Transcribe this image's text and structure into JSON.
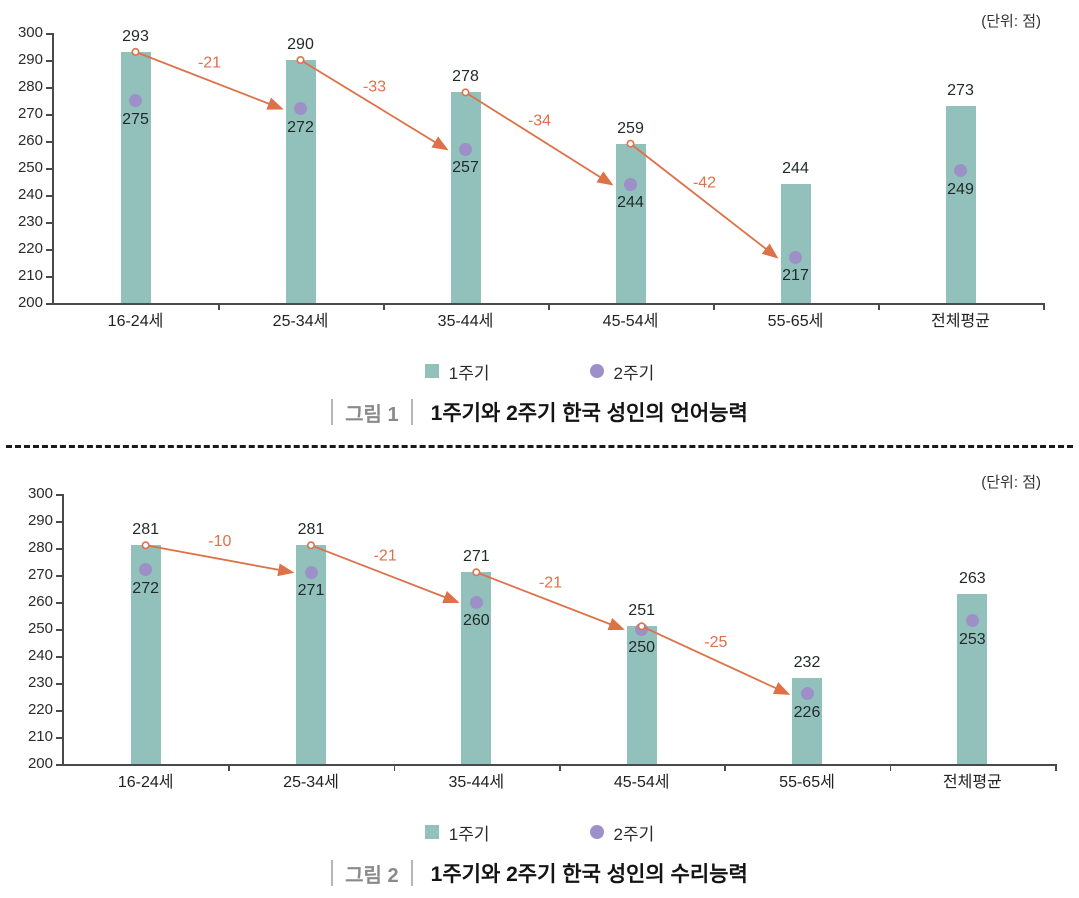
{
  "colors": {
    "bar": "#92c1bc",
    "dot": "#9d90c8",
    "arrow": "#dd7148",
    "axis": "#4a4a4a",
    "caption_label": "#8a8a8a"
  },
  "chart_data": [
    {
      "type": "bar",
      "title": "그림 1 | 1주기와 2주기 한국 성인의 언어능력",
      "caption_label": "그림 1",
      "caption_text": "1주기와 2주기 한국 성인의 언어능력",
      "unit_label": "(단위: 점)",
      "categories": [
        "16-24세",
        "25-34세",
        "35-44세",
        "45-54세",
        "55-65세",
        "전체평균"
      ],
      "series": [
        {
          "name": "1주기",
          "style": "bar",
          "values": [
            293,
            290,
            278,
            259,
            244,
            273
          ]
        },
        {
          "name": "2주기",
          "style": "point",
          "values": [
            275,
            272,
            257,
            244,
            217,
            249
          ]
        }
      ],
      "arrows": [
        {
          "label": "-21",
          "from": 0,
          "to": 1
        },
        {
          "label": "-33",
          "from": 1,
          "to": 2
        },
        {
          "label": "-34",
          "from": 2,
          "to": 3
        },
        {
          "label": "-42",
          "from": 3,
          "to": 4
        }
      ],
      "xlabel": "",
      "ylabel": "",
      "ylim": [
        200,
        300
      ],
      "yticks": [
        200,
        210,
        220,
        230,
        240,
        250,
        260,
        270,
        280,
        290,
        300
      ],
      "grid": false,
      "legend_position": "bottom"
    },
    {
      "type": "bar",
      "title": "그림 2 | 1주기와 2주기 한국 성인의 수리능력",
      "caption_label": "그림 2",
      "caption_text": "1주기와 2주기 한국 성인의 수리능력",
      "unit_label": "(단위: 점)",
      "categories": [
        "16-24세",
        "25-34세",
        "35-44세",
        "45-54세",
        "55-65세",
        "전체평균"
      ],
      "series": [
        {
          "name": "1주기",
          "style": "bar",
          "values": [
            281,
            281,
            271,
            251,
            232,
            263
          ]
        },
        {
          "name": "2주기",
          "style": "point",
          "values": [
            272,
            271,
            260,
            250,
            226,
            253
          ]
        }
      ],
      "arrows": [
        {
          "label": "-10",
          "from": 0,
          "to": 1
        },
        {
          "label": "-21",
          "from": 1,
          "to": 2
        },
        {
          "label": "-21",
          "from": 2,
          "to": 3
        },
        {
          "label": "-25",
          "from": 3,
          "to": 4
        }
      ],
      "xlabel": "",
      "ylabel": "",
      "ylim": [
        200,
        300
      ],
      "yticks": [
        200,
        210,
        220,
        230,
        240,
        250,
        260,
        270,
        280,
        290,
        300
      ],
      "grid": false,
      "legend_position": "bottom"
    }
  ]
}
